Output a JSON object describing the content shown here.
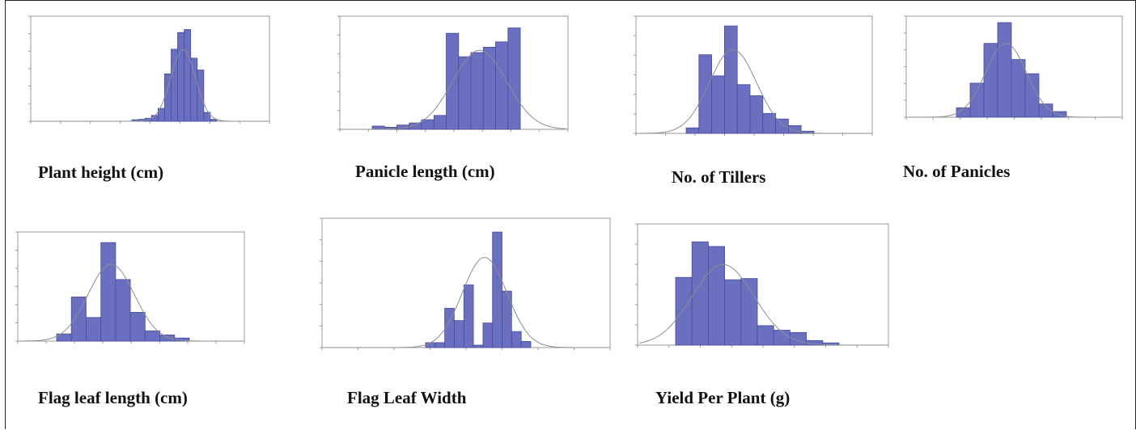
{
  "colors": {
    "bar": "#6a6fc0",
    "bar_stroke": "#474c9c",
    "curve": "#8e8e8e",
    "frame": "#9a9a9a"
  },
  "chart_data": [
    {
      "type": "bar",
      "title": "Plant height (cm)",
      "values": [
        0.015,
        0.02,
        0.03,
        0.06,
        0.13,
        0.48,
        0.73,
        0.9,
        0.93,
        0.64,
        0.52,
        0.09,
        0.02
      ]
    },
    {
      "type": "bar",
      "title": "Panicle length (cm)",
      "values": [
        0.03,
        0.02,
        0.04,
        0.06,
        0.09,
        0.13,
        0.9,
        0.68,
        0.72,
        0.77,
        0.82,
        0.95
      ]
    },
    {
      "type": "bar",
      "title": "No. of Tillers",
      "values": [
        0.05,
        0.71,
        0.52,
        0.97,
        0.44,
        0.34,
        0.18,
        0.13,
        0.07,
        0.02
      ]
    },
    {
      "type": "bar",
      "title": "No. of Panicles",
      "values": [
        0.1,
        0.36,
        0.78,
        1.0,
        0.61,
        0.46,
        0.14,
        0.06
      ]
    },
    {
      "type": "bar",
      "title": "Flag leaf length (cm)",
      "values": [
        0.07,
        0.43,
        0.23,
        0.96,
        0.6,
        0.28,
        0.1,
        0.06,
        0.03
      ]
    },
    {
      "type": "bar",
      "title": "Flag Leaf Width",
      "values": [
        0.04,
        0.04,
        0.32,
        0.22,
        0.51,
        0.02,
        0.2,
        0.94,
        0.46,
        0.13,
        0.05
      ]
    },
    {
      "type": "bar",
      "title": "Yield Per Plant (g)",
      "values": [
        0.59,
        0.9,
        0.86,
        0.57,
        0.58,
        0.17,
        0.13,
        0.11,
        0.04,
        0.02
      ]
    }
  ]
}
